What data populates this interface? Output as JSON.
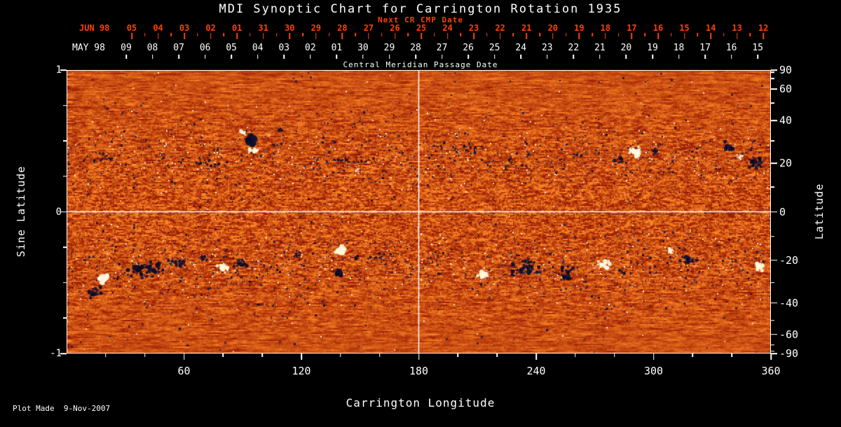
{
  "title": "MDI Synoptic Chart for Carrington Rotation 1935",
  "colors": {
    "background": "#000000",
    "text": "#ffffff",
    "date_red": "#ff4000",
    "grid_line": "#ffffff"
  },
  "top_axis": {
    "next_cr_label": "Next CR CMP Date",
    "red_month": "JUN 98",
    "red_days": [
      "05",
      "04",
      "03",
      "02",
      "01",
      "31",
      "30",
      "29",
      "28",
      "27",
      "26",
      "25",
      "24",
      "23",
      "22",
      "21",
      "20",
      "19",
      "18",
      "17",
      "16",
      "15",
      "14",
      "13",
      "12"
    ],
    "white_month": "MAY 98",
    "white_days": [
      "09",
      "08",
      "07",
      "06",
      "05",
      "04",
      "03",
      "02",
      "01",
      "30",
      "29",
      "28",
      "27",
      "26",
      "25",
      "24",
      "23",
      "22",
      "21",
      "20",
      "19",
      "18",
      "17",
      "16",
      "15"
    ],
    "cmp_label": "Central Meridian Passage Date"
  },
  "left_axis": {
    "label": "Sine Latitude",
    "ticks": [
      "1",
      "0",
      "-1"
    ],
    "tick_values": [
      1,
      0,
      -1
    ],
    "minor_tick_values": [
      0.75,
      0.5,
      0.25,
      -0.25,
      -0.5,
      -0.75
    ]
  },
  "right_axis": {
    "label": "Latitude",
    "ticks": [
      "90",
      "60",
      "40",
      "20",
      "0",
      "-20",
      "-40",
      "-60",
      "-90"
    ],
    "tick_values_deg": [
      90,
      60,
      40,
      20,
      0,
      -20,
      -40,
      -60,
      -90
    ],
    "minor_tick_values_deg": [
      80,
      70,
      50,
      30,
      10,
      -10,
      -30,
      -50,
      -70,
      -80
    ]
  },
  "bottom_axis": {
    "label": "Carrington Longitude",
    "ticks": [
      "60",
      "120",
      "180",
      "240",
      "300",
      "360"
    ],
    "tick_values": [
      60,
      120,
      180,
      240,
      300,
      360
    ],
    "minor_step_deg": 20
  },
  "footer": "Plot Made  9-Nov-2007",
  "chart_data": {
    "type": "heatmap",
    "title": "MDI Synoptic Chart for Carrington Rotation 1935",
    "xlabel": "Carrington Longitude",
    "ylabel_left": "Sine Latitude",
    "ylabel_right": "Latitude",
    "xlim": [
      0,
      360
    ],
    "ylim_sine_latitude": [
      -1,
      1
    ],
    "x_ticks": [
      60,
      120,
      180,
      240,
      300,
      360
    ],
    "grid_lines": {
      "vertical_at_longitude": 180,
      "horizontal_at_sine_latitude": 0
    },
    "palette": {
      "base_low": "#962002",
      "base_high": "#ff8725",
      "negative_polarity": "#0a0a30",
      "positive_polarity": "#fff8e0"
    },
    "speckle": {
      "dark_attempts": 9000,
      "white_attempts": 4200,
      "band_center": 0.38,
      "band_width": 0.2
    },
    "active_regions": [
      {
        "lon": 94,
        "sl": 0.5,
        "pol": "neg",
        "n": 26,
        "sx": 8,
        "sy": 7,
        "r": 4.5
      },
      {
        "lon": 96,
        "sl": 0.43,
        "pol": "pos",
        "n": 16,
        "sx": 9,
        "sy": 5,
        "r": 3
      },
      {
        "lon": 90,
        "sl": 0.56,
        "pol": "pos",
        "n": 8,
        "sx": 6,
        "sy": 4,
        "r": 2.5
      },
      {
        "lon": 109,
        "sl": 0.58,
        "pol": "neg",
        "n": 7,
        "sx": 4,
        "sy": 3,
        "r": 2.5
      },
      {
        "lon": 70,
        "sl": 0.34,
        "pol": "neg",
        "n": 26,
        "sx": 40,
        "sy": 8,
        "r": 1.8
      },
      {
        "lon": 22,
        "sl": 0.38,
        "pol": "neg",
        "n": 16,
        "sx": 28,
        "sy": 8,
        "r": 1.6
      },
      {
        "lon": 143,
        "sl": 0.35,
        "pol": "neg",
        "n": 32,
        "sx": 55,
        "sy": 9,
        "r": 1.8
      },
      {
        "lon": 150,
        "sl": 0.3,
        "pol": "pos",
        "n": 6,
        "sx": 20,
        "sy": 5,
        "r": 1.5
      },
      {
        "lon": 202,
        "sl": 0.44,
        "pol": "neg",
        "n": 28,
        "sx": 35,
        "sy": 11,
        "r": 1.9
      },
      {
        "lon": 232,
        "sl": 0.32,
        "pol": "neg",
        "n": 18,
        "sx": 30,
        "sy": 8,
        "r": 1.6
      },
      {
        "lon": 262,
        "sl": 0.4,
        "pol": "neg",
        "n": 14,
        "sx": 22,
        "sy": 8,
        "r": 1.6
      },
      {
        "lon": 291,
        "sl": 0.42,
        "pol": "pos",
        "n": 24,
        "sx": 9,
        "sy": 8,
        "r": 3.2
      },
      {
        "lon": 283,
        "sl": 0.37,
        "pol": "neg",
        "n": 16,
        "sx": 8,
        "sy": 7,
        "r": 2.4
      },
      {
        "lon": 301,
        "sl": 0.42,
        "pol": "neg",
        "n": 12,
        "sx": 7,
        "sy": 6,
        "r": 2.2
      },
      {
        "lon": 338,
        "sl": 0.46,
        "pol": "neg",
        "n": 18,
        "sx": 9,
        "sy": 8,
        "r": 2.6
      },
      {
        "lon": 352,
        "sl": 0.34,
        "pol": "neg",
        "n": 26,
        "sx": 12,
        "sy": 11,
        "r": 2.6
      },
      {
        "lon": 345,
        "sl": 0.39,
        "pol": "pos",
        "n": 8,
        "sx": 8,
        "sy": 6,
        "r": 2
      },
      {
        "lon": 19,
        "sl": -0.47,
        "pol": "pos",
        "n": 28,
        "sx": 9,
        "sy": 8,
        "r": 3.6
      },
      {
        "lon": 14,
        "sl": -0.57,
        "pol": "neg",
        "n": 18,
        "sx": 14,
        "sy": 8,
        "r": 2.4
      },
      {
        "lon": 40,
        "sl": -0.42,
        "pol": "neg",
        "n": 55,
        "sx": 30,
        "sy": 15,
        "r": 3
      },
      {
        "lon": 57,
        "sl": -0.36,
        "pol": "neg",
        "n": 20,
        "sx": 14,
        "sy": 9,
        "r": 2.4
      },
      {
        "lon": 80,
        "sl": -0.4,
        "pol": "pos",
        "n": 20,
        "sx": 9,
        "sy": 7,
        "r": 3
      },
      {
        "lon": 90,
        "sl": -0.37,
        "pol": "neg",
        "n": 24,
        "sx": 14,
        "sy": 8,
        "r": 2.4
      },
      {
        "lon": 70,
        "sl": -0.33,
        "pol": "neg",
        "n": 10,
        "sx": 8,
        "sy": 5,
        "r": 2
      },
      {
        "lon": 118,
        "sl": -0.31,
        "pol": "neg",
        "n": 10,
        "sx": 8,
        "sy": 5,
        "r": 1.8
      },
      {
        "lon": 140,
        "sl": -0.27,
        "pol": "pos",
        "n": 24,
        "sx": 8,
        "sy": 7,
        "r": 3.8
      },
      {
        "lon": 139,
        "sl": -0.43,
        "pol": "neg",
        "n": 18,
        "sx": 7,
        "sy": 6,
        "r": 2.8
      },
      {
        "lon": 148,
        "sl": -0.33,
        "pol": "neg",
        "n": 8,
        "sx": 5,
        "sy": 4,
        "r": 2
      },
      {
        "lon": 163,
        "sl": -0.33,
        "pol": "neg",
        "n": 18,
        "sx": 28,
        "sy": 8,
        "r": 1.7
      },
      {
        "lon": 213,
        "sl": -0.44,
        "pol": "pos",
        "n": 22,
        "sx": 9,
        "sy": 7,
        "r": 3.2
      },
      {
        "lon": 235,
        "sl": -0.39,
        "pol": "neg",
        "n": 42,
        "sx": 26,
        "sy": 12,
        "r": 2.8
      },
      {
        "lon": 255,
        "sl": -0.44,
        "pol": "neg",
        "n": 24,
        "sx": 11,
        "sy": 13,
        "r": 2.6
      },
      {
        "lon": 275,
        "sl": -0.37,
        "pol": "pos",
        "n": 24,
        "sx": 12,
        "sy": 7,
        "r": 2.8
      },
      {
        "lon": 284,
        "sl": -0.43,
        "pol": "neg",
        "n": 10,
        "sx": 7,
        "sy": 6,
        "r": 2
      },
      {
        "lon": 309,
        "sl": -0.28,
        "pol": "pos",
        "n": 12,
        "sx": 7,
        "sy": 5,
        "r": 2.2
      },
      {
        "lon": 318,
        "sl": -0.34,
        "pol": "neg",
        "n": 28,
        "sx": 15,
        "sy": 10,
        "r": 2.4
      },
      {
        "lon": 354,
        "sl": -0.39,
        "pol": "pos",
        "n": 18,
        "sx": 8,
        "sy": 7,
        "r": 2.8
      },
      {
        "lon": 277,
        "sl": -0.68,
        "pol": "neg",
        "n": 10,
        "sx": 20,
        "sy": 6,
        "r": 1.4
      },
      {
        "lon": 100,
        "sl": -0.66,
        "pol": "neg",
        "n": 10,
        "sx": 25,
        "sy": 6,
        "r": 1.3
      }
    ]
  }
}
